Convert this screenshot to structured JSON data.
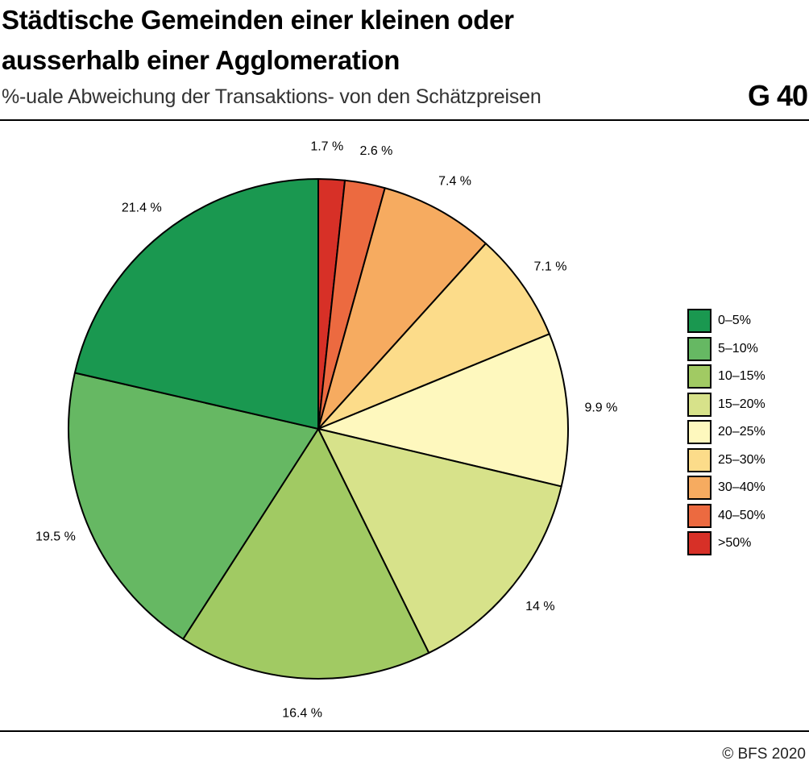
{
  "header": {
    "title": "Städtische Gemeinden einer kleinen oder ausserhalb einer Agglomeration",
    "subtitle": "%-uale Abweichung der Transaktions- von den Schätzpreisen",
    "code": "G 40"
  },
  "footer": {
    "source": "© BFS 2020"
  },
  "chart_data": {
    "type": "pie",
    "title": "Städtische Gemeinden einer kleinen oder ausserhalb einer Agglomeration",
    "subtitle": "%-uale Abweichung der Transaktions- von den Schätzpreisen",
    "start": "12 o'clock",
    "direction": "clockwise",
    "legend_position": "right",
    "slices": [
      {
        "label": ">50%",
        "value": 1.7,
        "value_label": "1.7 %",
        "color": "#d73027"
      },
      {
        "label": "40–50%",
        "value": 2.6,
        "value_label": "2.6 %",
        "color": "#ec6a40"
      },
      {
        "label": "30–40%",
        "value": 7.4,
        "value_label": "7.4 %",
        "color": "#f6ab60"
      },
      {
        "label": "25–30%",
        "value": 7.1,
        "value_label": "7.1 %",
        "color": "#fcdc8a"
      },
      {
        "label": "20–25%",
        "value": 9.9,
        "value_label": "9.9 %",
        "color": "#fef8be"
      },
      {
        "label": "15–20%",
        "value": 14,
        "value_label": "14 %",
        "color": "#d7e28a"
      },
      {
        "label": "10–15%",
        "value": 16.4,
        "value_label": "16.4 %",
        "color": "#a1ca63"
      },
      {
        "label": "5–10%",
        "value": 19.5,
        "value_label": "19.5 %",
        "color": "#66b863"
      },
      {
        "label": "0–5%",
        "value": 21.4,
        "value_label": "21.4 %",
        "color": "#1a9850"
      }
    ],
    "legend_order": [
      "0–5%",
      "5–10%",
      "10–15%",
      "15–20%",
      "20–25%",
      "25–30%",
      "30–40%",
      "40–50%",
      ">50%"
    ]
  }
}
